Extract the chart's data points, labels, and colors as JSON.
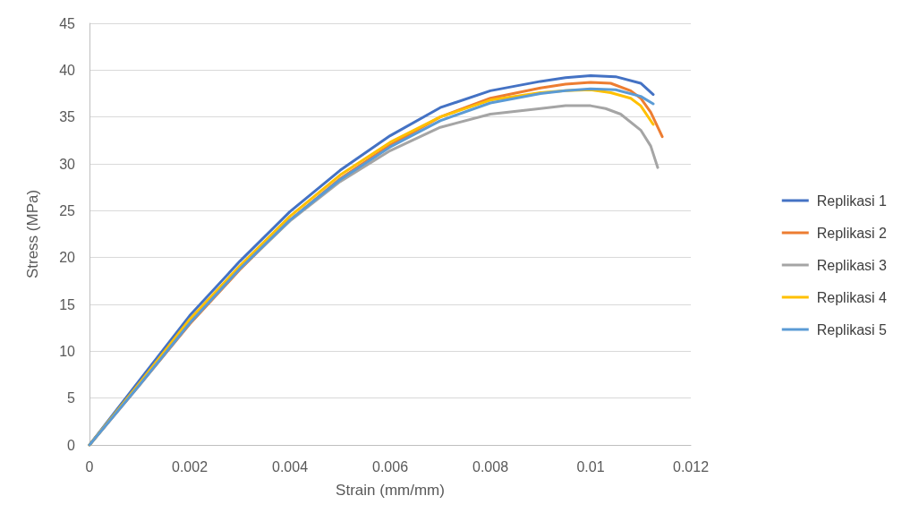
{
  "chart_data": {
    "type": "line",
    "xlabel": "Strain (mm/mm)",
    "ylabel": "Stress (MPa)",
    "xlim": [
      0,
      0.012
    ],
    "xticks": [
      0,
      0.002,
      0.004,
      0.006,
      0.008,
      0.01,
      0.012
    ],
    "ylim": [
      0,
      45
    ],
    "yticks": [
      0,
      5,
      10,
      15,
      20,
      25,
      30,
      35,
      40,
      45
    ],
    "grid": "y",
    "legend": "right",
    "marker": "none",
    "line_style": "solid",
    "series": [
      {
        "name": "Replikasi 1",
        "color": "#4472c4",
        "x": [
          0,
          0.001,
          0.002,
          0.003,
          0.004,
          0.005,
          0.006,
          0.007,
          0.008,
          0.009,
          0.0095,
          0.01,
          0.0105,
          0.011,
          0.01125
        ],
        "values": [
          0,
          6.9,
          13.8,
          19.6,
          24.9,
          29.3,
          33,
          36,
          37.8,
          38.8,
          39.2,
          39.4,
          39.3,
          38.6,
          37.4
        ]
      },
      {
        "name": "Replikasi 2",
        "color": "#ed7d31",
        "x": [
          0,
          0.001,
          0.002,
          0.003,
          0.004,
          0.005,
          0.006,
          0.007,
          0.008,
          0.009,
          0.0095,
          0.01,
          0.0104,
          0.0108,
          0.011,
          0.0112,
          0.01143
        ],
        "values": [
          0,
          6.4,
          12.9,
          18.7,
          24,
          28.4,
          32,
          35,
          37,
          38.1,
          38.5,
          38.7,
          38.6,
          37.8,
          37,
          35.5,
          32.9
        ]
      },
      {
        "name": "Replikasi 3",
        "color": "#a5a5a5",
        "x": [
          0,
          0.001,
          0.002,
          0.003,
          0.004,
          0.005,
          0.006,
          0.007,
          0.008,
          0.009,
          0.0095,
          0.01,
          0.0103,
          0.0106,
          0.011,
          0.0112,
          0.01134
        ],
        "values": [
          0,
          6.5,
          13.1,
          18.8,
          23.9,
          28.1,
          31.4,
          33.9,
          35.3,
          35.9,
          36.2,
          36.2,
          35.9,
          35.3,
          33.6,
          31.9,
          29.6
        ]
      },
      {
        "name": "Replikasi 4",
        "color": "#ffc000",
        "x": [
          0,
          0.001,
          0.002,
          0.003,
          0.004,
          0.005,
          0.006,
          0.007,
          0.008,
          0.009,
          0.0095,
          0.01,
          0.0104,
          0.0108,
          0.011,
          0.01125
        ],
        "values": [
          0,
          6.6,
          13.4,
          19.1,
          24.4,
          28.8,
          32.3,
          35,
          36.8,
          37.6,
          37.8,
          37.9,
          37.6,
          37,
          36.2,
          34.2
        ]
      },
      {
        "name": "Replikasi 5",
        "color": "#5b9bd5",
        "x": [
          0,
          0.001,
          0.002,
          0.003,
          0.004,
          0.005,
          0.006,
          0.007,
          0.008,
          0.009,
          0.0095,
          0.01,
          0.0105,
          0.011,
          0.01125
        ],
        "values": [
          0,
          6.4,
          13,
          18.8,
          24,
          28.3,
          31.8,
          34.6,
          36.5,
          37.5,
          37.8,
          38,
          37.9,
          37.2,
          36.4
        ]
      }
    ]
  }
}
